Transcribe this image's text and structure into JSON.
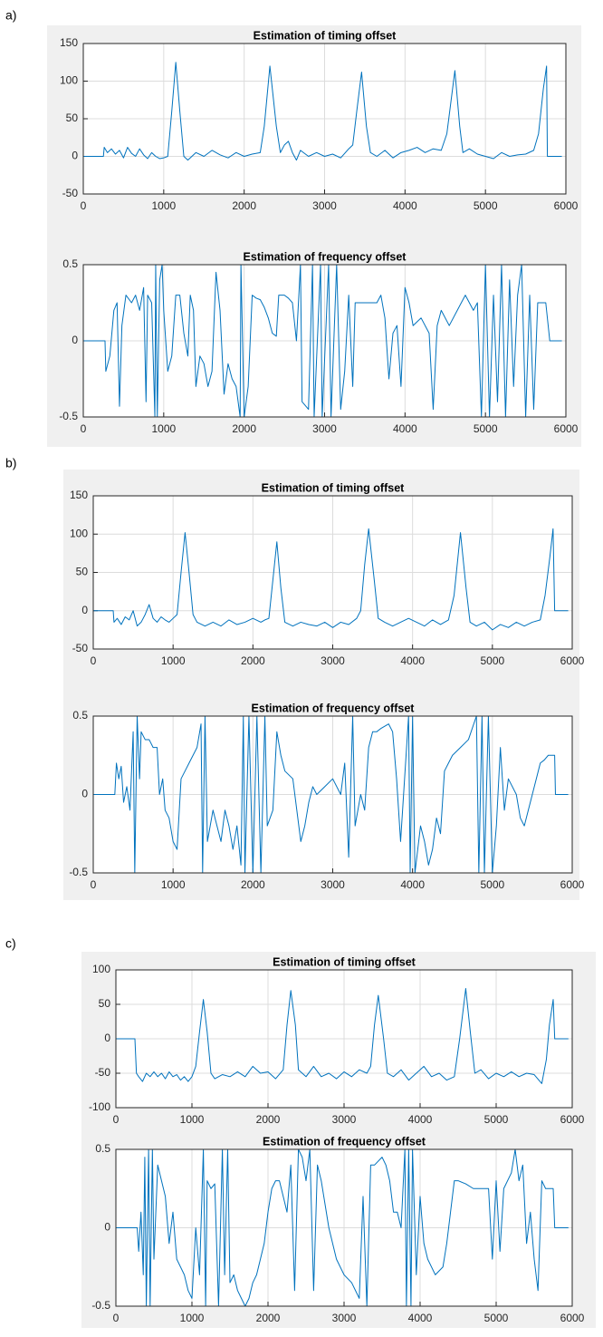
{
  "panel_labels": [
    "a)",
    "b)",
    "c)"
  ],
  "chart_data": [
    {
      "type": "line",
      "title": "Estimation of timing offset",
      "color": "#0072bd",
      "grid": true,
      "xlim": [
        0,
        6000
      ],
      "xticks": [
        0,
        1000,
        2000,
        3000,
        4000,
        5000,
        6000
      ],
      "ylim": [
        -50,
        150
      ],
      "yticks": [
        -50,
        0,
        50,
        100,
        150
      ],
      "x": [
        0,
        250,
        260,
        300,
        350,
        400,
        450,
        500,
        550,
        600,
        650,
        700,
        750,
        800,
        850,
        900,
        950,
        1000,
        1050,
        1100,
        1150,
        1200,
        1250,
        1300,
        1400,
        1500,
        1600,
        1700,
        1800,
        1900,
        2000,
        2100,
        2200,
        2250,
        2320,
        2400,
        2450,
        2500,
        2550,
        2600,
        2650,
        2700,
        2800,
        2900,
        3000,
        3100,
        3200,
        3300,
        3350,
        3400,
        3460,
        3520,
        3570,
        3650,
        3750,
        3850,
        3950,
        4050,
        4150,
        4250,
        4350,
        4450,
        4520,
        4620,
        4680,
        4720,
        4800,
        4900,
        5000,
        5100,
        5200,
        5300,
        5400,
        5500,
        5600,
        5660,
        5720,
        5760,
        5770,
        5950
      ],
      "values": [
        0,
        0,
        12,
        5,
        10,
        3,
        8,
        -2,
        12,
        4,
        0,
        10,
        2,
        -3,
        5,
        0,
        -3,
        -2,
        0,
        60,
        125,
        60,
        0,
        -5,
        5,
        0,
        8,
        2,
        -2,
        5,
        0,
        3,
        5,
        40,
        120,
        40,
        5,
        15,
        20,
        5,
        -5,
        8,
        0,
        5,
        0,
        3,
        -2,
        10,
        15,
        60,
        112,
        40,
        5,
        0,
        8,
        -2,
        5,
        8,
        12,
        5,
        10,
        8,
        30,
        114,
        40,
        5,
        10,
        3,
        0,
        -3,
        5,
        0,
        2,
        3,
        8,
        30,
        90,
        120,
        0,
        0
      ]
    },
    {
      "type": "line",
      "title": "Estimation of frequency offset",
      "color": "#0072bd",
      "grid": true,
      "xlim": [
        0,
        6000
      ],
      "xticks": [
        0,
        1000,
        2000,
        3000,
        4000,
        5000,
        6000
      ],
      "ylim": [
        -0.5,
        0.5
      ],
      "yticks": [
        -0.5,
        0,
        0.5
      ],
      "x": [
        0,
        270,
        280,
        330,
        380,
        420,
        450,
        480,
        530,
        600,
        650,
        700,
        750,
        780,
        800,
        850,
        890,
        900,
        920,
        950,
        980,
        1000,
        1050,
        1100,
        1150,
        1200,
        1250,
        1300,
        1330,
        1370,
        1400,
        1450,
        1500,
        1550,
        1600,
        1650,
        1700,
        1750,
        1800,
        1850,
        1900,
        1950,
        1960,
        2000,
        2050,
        2100,
        2150,
        2200,
        2250,
        2300,
        2350,
        2400,
        2430,
        2500,
        2550,
        2600,
        2650,
        2700,
        2720,
        2800,
        2850,
        2870,
        2950,
        2970,
        3050,
        3080,
        3150,
        3200,
        3250,
        3300,
        3350,
        3380,
        3450,
        3550,
        3650,
        3700,
        3750,
        3800,
        3850,
        3900,
        3950,
        4000,
        4050,
        4100,
        4200,
        4300,
        4350,
        4400,
        4450,
        4550,
        4650,
        4750,
        4850,
        4900,
        4950,
        5000,
        5050,
        5100,
        5150,
        5200,
        5250,
        5300,
        5350,
        5400,
        5450,
        5500,
        5550,
        5600,
        5650,
        5700,
        5750,
        5800,
        5950
      ],
      "values": [
        0,
        0,
        -0.2,
        -0.1,
        0.2,
        0.25,
        -0.43,
        0.1,
        0.3,
        0.25,
        0.3,
        0.2,
        0.35,
        -0.4,
        0.3,
        0.25,
        -0.5,
        0.5,
        -0.5,
        0.4,
        0.5,
        0.2,
        -0.2,
        -0.1,
        0.3,
        0.3,
        0.05,
        -0.1,
        0.3,
        0.2,
        -0.3,
        -0.1,
        -0.15,
        -0.3,
        -0.2,
        0.45,
        0.2,
        -0.35,
        -0.15,
        -0.25,
        -0.3,
        -0.5,
        0.5,
        -0.5,
        -0.3,
        0.3,
        0.28,
        0.27,
        0.22,
        0.15,
        0.05,
        0.03,
        0.3,
        0.3,
        0.28,
        0.25,
        0,
        0.5,
        -0.4,
        -0.45,
        0.5,
        -0.5,
        0.5,
        -0.5,
        0.5,
        -0.5,
        0.5,
        -0.45,
        -0.2,
        0.3,
        -0.3,
        0.25,
        0.25,
        0.25,
        0.25,
        0.3,
        0.15,
        -0.25,
        0.05,
        0.1,
        -0.3,
        0.35,
        0.25,
        0.1,
        0.15,
        0.05,
        -0.45,
        0.1,
        0.2,
        0.1,
        0.2,
        0.3,
        0.2,
        0.25,
        -0.5,
        0.5,
        -0.5,
        0.3,
        -0.4,
        0.5,
        -0.5,
        0.4,
        -0.3,
        0.3,
        0.5,
        -0.5,
        0.3,
        -0.45,
        0.25,
        0.25,
        0.25,
        0,
        0
      ]
    },
    {
      "type": "line",
      "title": "Estimation of timing offset",
      "color": "#0072bd",
      "grid": true,
      "xlim": [
        0,
        6000
      ],
      "xticks": [
        0,
        1000,
        2000,
        3000,
        4000,
        5000,
        6000
      ],
      "ylim": [
        -50,
        150
      ],
      "yticks": [
        -50,
        0,
        50,
        100,
        150
      ],
      "x": [
        0,
        250,
        260,
        300,
        350,
        400,
        450,
        500,
        550,
        600,
        650,
        700,
        750,
        800,
        850,
        900,
        950,
        1000,
        1050,
        1100,
        1150,
        1200,
        1250,
        1300,
        1400,
        1500,
        1600,
        1700,
        1800,
        1900,
        2000,
        2100,
        2150,
        2200,
        2250,
        2300,
        2350,
        2400,
        2500,
        2600,
        2700,
        2800,
        2900,
        3000,
        3100,
        3200,
        3300,
        3350,
        3400,
        3450,
        3520,
        3570,
        3650,
        3750,
        3850,
        3950,
        4050,
        4150,
        4250,
        4350,
        4450,
        4520,
        4600,
        4670,
        4720,
        4800,
        4900,
        5000,
        5100,
        5200,
        5300,
        5400,
        5500,
        5600,
        5660,
        5720,
        5760,
        5780,
        5950
      ],
      "values": [
        0,
        0,
        -15,
        -10,
        -18,
        -8,
        -12,
        0,
        -20,
        -15,
        -5,
        8,
        -10,
        -15,
        -8,
        -12,
        -15,
        -10,
        -5,
        50,
        102,
        50,
        -5,
        -15,
        -20,
        -15,
        -20,
        -12,
        -18,
        -15,
        -10,
        -15,
        -12,
        -10,
        40,
        90,
        30,
        -15,
        -20,
        -15,
        -18,
        -20,
        -15,
        -22,
        -15,
        -18,
        -10,
        0,
        60,
        107,
        40,
        -10,
        -15,
        -20,
        -15,
        -10,
        -15,
        -20,
        -12,
        -18,
        -12,
        20,
        102,
        30,
        -15,
        -20,
        -15,
        -25,
        -18,
        -22,
        -15,
        -20,
        -15,
        -12,
        20,
        70,
        107,
        0,
        0
      ]
    },
    {
      "type": "line",
      "title": "Estimation of frequency offset",
      "color": "#0072bd",
      "grid": true,
      "xlim": [
        0,
        6000
      ],
      "xticks": [
        0,
        1000,
        2000,
        3000,
        4000,
        5000,
        6000
      ],
      "ylim": [
        -0.5,
        0.5
      ],
      "yticks": [
        -0.5,
        0,
        0.5
      ],
      "x": [
        0,
        270,
        290,
        320,
        350,
        380,
        420,
        460,
        500,
        520,
        550,
        580,
        600,
        650,
        700,
        750,
        800,
        830,
        870,
        900,
        950,
        1000,
        1050,
        1100,
        1150,
        1200,
        1250,
        1300,
        1350,
        1370,
        1400,
        1430,
        1500,
        1550,
        1600,
        1650,
        1700,
        1750,
        1800,
        1850,
        1880,
        1900,
        1950,
        2000,
        2050,
        2100,
        2150,
        2180,
        2250,
        2300,
        2350,
        2400,
        2500,
        2550,
        2600,
        2650,
        2700,
        2750,
        2800,
        2900,
        3000,
        3100,
        3150,
        3200,
        3250,
        3280,
        3350,
        3400,
        3450,
        3500,
        3550,
        3600,
        3700,
        3750,
        3800,
        3850,
        3900,
        3950,
        3970,
        4000,
        4030,
        4100,
        4150,
        4200,
        4250,
        4300,
        4350,
        4400,
        4450,
        4500,
        4600,
        4700,
        4800,
        4830,
        4870,
        4900,
        4950,
        5000,
        5050,
        5100,
        5150,
        5200,
        5300,
        5350,
        5400,
        5450,
        5500,
        5550,
        5600,
        5650,
        5700,
        5780,
        5790,
        5950
      ],
      "values": [
        0,
        0,
        0.2,
        0.1,
        0.18,
        -0.05,
        0.05,
        -0.1,
        0.4,
        -0.5,
        0.5,
        0.1,
        0.4,
        0.35,
        0.35,
        0.3,
        0.3,
        0,
        0.1,
        -0.1,
        -0.15,
        -0.3,
        -0.35,
        0.1,
        0.15,
        0.2,
        0.25,
        0.3,
        0.45,
        -0.5,
        0.5,
        -0.3,
        -0.1,
        -0.2,
        -0.3,
        -0.1,
        -0.2,
        -0.35,
        -0.2,
        -0.45,
        0.5,
        -0.5,
        0.5,
        -0.5,
        0.5,
        -0.5,
        0.5,
        -0.2,
        -0.1,
        0.4,
        0.25,
        0.15,
        0.1,
        -0.1,
        -0.3,
        -0.2,
        -0.05,
        0.05,
        0,
        0.05,
        0.1,
        0,
        0.2,
        -0.4,
        0.5,
        -0.2,
        0,
        -0.1,
        0.3,
        0.4,
        0.4,
        0.42,
        0.45,
        0.4,
        0.1,
        -0.3,
        0.1,
        0.5,
        -0.5,
        0.5,
        -0.5,
        -0.2,
        -0.3,
        -0.45,
        -0.35,
        -0.15,
        -0.25,
        0.15,
        0.2,
        0.25,
        0.3,
        0.35,
        0.5,
        -0.5,
        0.5,
        -0.5,
        0.5,
        -0.5,
        -0.2,
        0.3,
        -0.1,
        0.1,
        0,
        -0.15,
        -0.2,
        -0.1,
        0,
        0.1,
        0.2,
        0.22,
        0.25,
        0.25,
        0,
        0
      ]
    },
    {
      "type": "line",
      "title": "Estimation of timing offset",
      "color": "#0072bd",
      "grid": true,
      "xlim": [
        0,
        6000
      ],
      "xticks": [
        0,
        1000,
        2000,
        3000,
        4000,
        5000,
        6000
      ],
      "ylim": [
        -100,
        100
      ],
      "yticks": [
        -100,
        -50,
        0,
        50,
        100
      ],
      "x": [
        0,
        250,
        270,
        300,
        350,
        400,
        450,
        500,
        550,
        600,
        650,
        700,
        750,
        800,
        850,
        900,
        950,
        1000,
        1050,
        1100,
        1150,
        1200,
        1250,
        1300,
        1400,
        1500,
        1600,
        1700,
        1800,
        1900,
        2000,
        2100,
        2200,
        2250,
        2300,
        2360,
        2400,
        2500,
        2600,
        2700,
        2800,
        2900,
        3000,
        3100,
        3200,
        3300,
        3350,
        3400,
        3450,
        3520,
        3570,
        3650,
        3750,
        3850,
        3950,
        4050,
        4150,
        4250,
        4350,
        4450,
        4520,
        4600,
        4660,
        4720,
        4800,
        4900,
        5000,
        5100,
        5200,
        5300,
        5400,
        5500,
        5600,
        5660,
        5700,
        5750,
        5770,
        5950
      ],
      "values": [
        0,
        0,
        -50,
        -55,
        -62,
        -50,
        -55,
        -48,
        -55,
        -50,
        -58,
        -48,
        -55,
        -52,
        -60,
        -55,
        -62,
        -55,
        -40,
        10,
        57,
        10,
        -50,
        -58,
        -52,
        -55,
        -48,
        -55,
        -40,
        -50,
        -48,
        -58,
        -45,
        20,
        70,
        20,
        -45,
        -55,
        -40,
        -55,
        -50,
        -58,
        -48,
        -55,
        -45,
        -50,
        -40,
        20,
        63,
        0,
        -50,
        -55,
        -45,
        -60,
        -50,
        -40,
        -55,
        -50,
        -60,
        -55,
        0,
        73,
        10,
        -50,
        -45,
        -58,
        -50,
        -55,
        -48,
        -55,
        -50,
        -52,
        -65,
        -30,
        20,
        57,
        0,
        0
      ]
    },
    {
      "type": "line",
      "title": "Estimation of frequency offset",
      "color": "#0072bd",
      "grid": true,
      "xlim": [
        0,
        6000
      ],
      "xticks": [
        0,
        1000,
        2000,
        3000,
        4000,
        5000,
        6000
      ],
      "ylim": [
        -0.5,
        0.5
      ],
      "yticks": [
        -0.5,
        0,
        0.5
      ],
      "x": [
        0,
        280,
        300,
        330,
        360,
        380,
        400,
        430,
        450,
        480,
        500,
        550,
        600,
        650,
        700,
        750,
        800,
        900,
        950,
        1000,
        1050,
        1100,
        1150,
        1180,
        1200,
        1250,
        1300,
        1350,
        1400,
        1430,
        1470,
        1500,
        1550,
        1600,
        1650,
        1700,
        1750,
        1800,
        1850,
        1900,
        1950,
        2000,
        2050,
        2100,
        2150,
        2200,
        2250,
        2300,
        2350,
        2400,
        2450,
        2500,
        2550,
        2600,
        2650,
        2700,
        2800,
        2900,
        3000,
        3100,
        3200,
        3250,
        3300,
        3350,
        3400,
        3500,
        3550,
        3600,
        3650,
        3700,
        3750,
        3800,
        3820,
        3850,
        3880,
        3900,
        3950,
        4000,
        4050,
        4100,
        4200,
        4300,
        4350,
        4400,
        4450,
        4500,
        4600,
        4700,
        4800,
        4900,
        4950,
        5000,
        5050,
        5100,
        5200,
        5250,
        5300,
        5350,
        5400,
        5450,
        5500,
        5550,
        5600,
        5650,
        5700,
        5750,
        5770,
        5950
      ],
      "values": [
        0,
        0,
        -0.15,
        0.1,
        -0.3,
        0.45,
        -0.5,
        0.5,
        -0.5,
        0.5,
        -0.2,
        0.4,
        0.3,
        0.2,
        -0.1,
        0.1,
        -0.2,
        -0.3,
        -0.4,
        -0.45,
        0,
        -0.3,
        0.5,
        -0.5,
        0.3,
        0.25,
        0.28,
        -0.5,
        0.5,
        -0.3,
        0.5,
        -0.35,
        -0.3,
        -0.4,
        -0.45,
        -0.5,
        -0.45,
        -0.35,
        -0.3,
        -0.2,
        -0.1,
        0.1,
        0.25,
        0.3,
        0.3,
        0.2,
        0.1,
        0.4,
        -0.4,
        0.5,
        0.45,
        0.3,
        0.5,
        -0.4,
        0.4,
        0.3,
        0,
        -0.2,
        -0.3,
        -0.35,
        -0.45,
        0.2,
        -0.5,
        0.4,
        0.4,
        0.45,
        0.4,
        0.3,
        0.1,
        0.1,
        0,
        0.5,
        -0.5,
        0.5,
        -0.5,
        0.5,
        -0.3,
        0.2,
        -0.1,
        -0.2,
        -0.3,
        -0.25,
        -0.1,
        0.1,
        0.3,
        0.3,
        0.28,
        0.25,
        0.25,
        0.25,
        -0.2,
        0.3,
        -0.15,
        0.25,
        0.35,
        0.5,
        0.3,
        0.4,
        -0.1,
        0.1,
        -0.2,
        -0.4,
        0.3,
        0.25,
        0.25,
        0.25,
        0,
        0
      ]
    }
  ]
}
